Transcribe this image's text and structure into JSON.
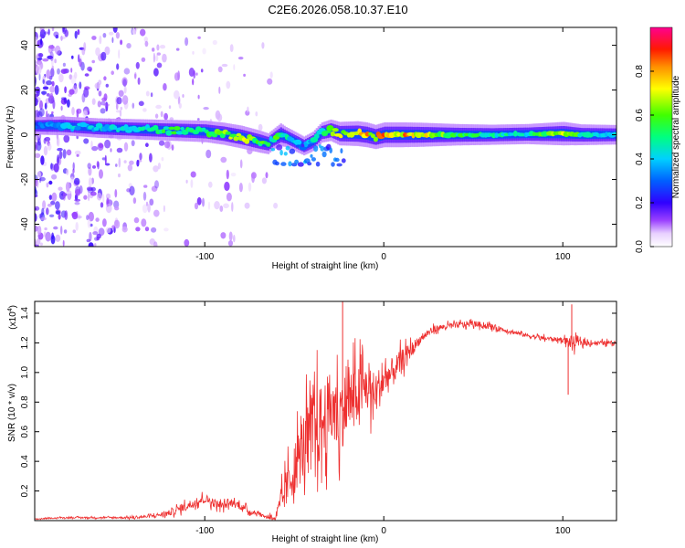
{
  "page_title": "C2E6.2026.058.10.37.E10",
  "chart_data": [
    {
      "type": "heatmap",
      "title": "C2E6.2026.058.10.37.E10",
      "xlabel": "Height of straight line (km)",
      "ylabel": "Frequency (Hz)",
      "xlim": [
        -195,
        130
      ],
      "ylim": [
        -50,
        48
      ],
      "x_ticks": [
        -100,
        0,
        100
      ],
      "x_tick_labels": [
        "-100",
        "0",
        "100"
      ],
      "y_ticks": [
        -40,
        -20,
        0,
        20,
        40
      ],
      "y_tick_labels": [
        "-40",
        "-20",
        "0",
        "20",
        "40"
      ],
      "colorbar": {
        "label": "Normalized spectral amplitude",
        "range": [
          0,
          1
        ],
        "ticks": [
          0.0,
          0.2,
          0.4,
          0.6,
          0.8
        ],
        "tick_labels": [
          "0.0",
          "0.2",
          "0.4",
          "0.6",
          "0.8"
        ],
        "colormap": [
          "#ffffff",
          "#c8a0f0",
          "#7a00ff",
          "#0000ff",
          "#00c8ff",
          "#00ff80",
          "#40ff00",
          "#ffff00",
          "#ffa000",
          "#ff2000",
          "#ff0080"
        ]
      },
      "ridge": {
        "x": [
          -195,
          -180,
          -160,
          -140,
          -120,
          -100,
          -90,
          -80,
          -70,
          -65,
          -62,
          -58,
          -55,
          -50,
          -45,
          -40,
          -35,
          -30,
          -25,
          -20,
          -15,
          -10,
          -5,
          0,
          10,
          20,
          40,
          60,
          80,
          100,
          110,
          130
        ],
        "freq": [
          4,
          4,
          3,
          2.5,
          2,
          1.5,
          0.5,
          -1,
          -3,
          -4,
          -2,
          0,
          -1,
          -3,
          -5,
          -3,
          1,
          2,
          0.5,
          0.5,
          0.5,
          0,
          -1,
          0,
          0,
          0,
          0,
          0,
          0.3,
          0.5,
          0,
          0
        ],
        "amplitude": [
          0.3,
          0.4,
          0.45,
          0.5,
          0.55,
          0.6,
          0.65,
          0.7,
          0.65,
          0.55,
          0.5,
          0.7,
          0.5,
          0.45,
          0.4,
          0.45,
          0.5,
          0.6,
          0.75,
          0.8,
          0.85,
          0.85,
          0.8,
          0.85,
          0.85,
          0.8,
          0.6,
          0.5,
          0.5,
          0.75,
          0.55,
          0.45
        ]
      },
      "noise_region_km": [
        -195,
        -60
      ]
    },
    {
      "type": "line",
      "xlabel": "Height of straight line (km)",
      "ylabel": "SNR (10 * v/v)",
      "scale_label": "(x10",
      "scale_exponent": "4",
      "scale_close": ")",
      "xlim": [
        -195,
        130
      ],
      "ylim": [
        0,
        1.48
      ],
      "x_ticks": [
        -100,
        0,
        100
      ],
      "x_tick_labels": [
        "-100",
        "0",
        "100"
      ],
      "y_ticks": [
        0.2,
        0.4,
        0.6,
        0.8,
        1.0,
        1.2,
        1.4
      ],
      "y_tick_labels": [
        "0.2",
        "0.4",
        "0.6",
        "0.8",
        "1.0",
        "1.2",
        "1.4"
      ],
      "color": "#ee3030",
      "series": [
        {
          "name": "SNR",
          "x": [
            -195,
            -180,
            -160,
            -140,
            -130,
            -120,
            -110,
            -100,
            -95,
            -90,
            -85,
            -80,
            -75,
            -70,
            -65,
            -60,
            -55,
            -50,
            -45,
            -40,
            -35,
            -30,
            -25,
            -20,
            -15,
            -10,
            -5,
            0,
            5,
            10,
            15,
            20,
            25,
            30,
            40,
            50,
            60,
            70,
            80,
            90,
            100,
            105,
            110,
            120,
            130
          ],
          "y": [
            0.01,
            0.02,
            0.02,
            0.02,
            0.03,
            0.05,
            0.1,
            0.15,
            0.12,
            0.1,
            0.12,
            0.1,
            0.06,
            0.05,
            0.02,
            0.03,
            0.2,
            0.35,
            0.5,
            0.6,
            0.65,
            0.75,
            0.7,
            0.8,
            0.85,
            0.9,
            0.85,
            0.95,
            1.0,
            1.08,
            1.15,
            1.22,
            1.27,
            1.3,
            1.32,
            1.33,
            1.31,
            1.28,
            1.25,
            1.23,
            1.22,
            1.2,
            1.2,
            1.2,
            1.2
          ],
          "noise": [
            0.005,
            0.008,
            0.01,
            0.015,
            0.02,
            0.04,
            0.06,
            0.06,
            0.06,
            0.05,
            0.05,
            0.05,
            0.04,
            0.02,
            0.02,
            0.1,
            0.25,
            0.35,
            0.45,
            0.55,
            0.55,
            0.5,
            0.5,
            0.45,
            0.4,
            0.35,
            0.3,
            0.25,
            0.2,
            0.15,
            0.1,
            0.06,
            0.05,
            0.04,
            0.04,
            0.04,
            0.04,
            0.03,
            0.03,
            0.03,
            0.03,
            0.1,
            0.04,
            0.03,
            0.03
          ]
        }
      ],
      "spikes": [
        {
          "x": -23,
          "y": 1.48
        },
        {
          "x": 103,
          "y": 0.85
        },
        {
          "x": 105,
          "y": 1.46
        }
      ]
    }
  ]
}
